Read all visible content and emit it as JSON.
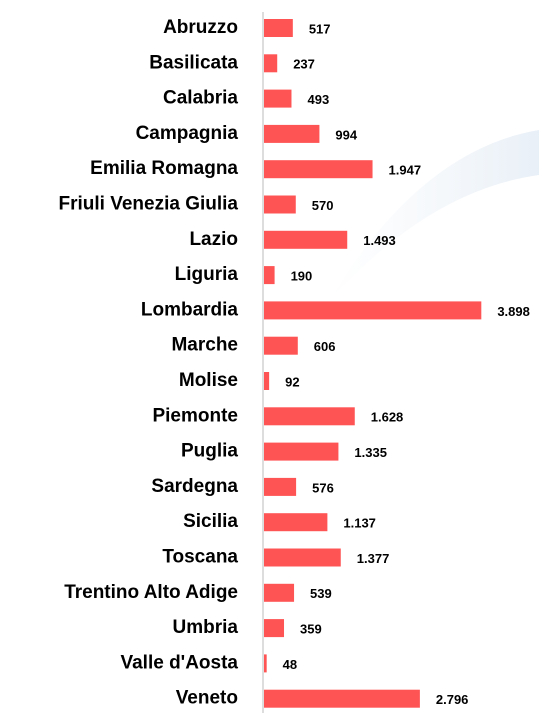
{
  "chart_data": {
    "type": "hbar",
    "categories": [
      "Abruzzo",
      "Basilicata",
      "Calabria",
      "Campagnia",
      "Emilia Romagna",
      "Friuli Venezia Giulia",
      "Lazio",
      "Liguria",
      "Lombardia",
      "Marche",
      "Molise",
      "Piemonte",
      "Puglia",
      "Sardegna",
      "Sicilia",
      "Toscana",
      "Trentino Alto Adige",
      "Umbria",
      "Valle d'Aosta",
      "Veneto"
    ],
    "values": [
      517,
      237,
      493,
      994,
      1947,
      570,
      1493,
      190,
      3898,
      606,
      92,
      1628,
      1335,
      576,
      1137,
      1377,
      539,
      359,
      48,
      2796
    ],
    "value_labels": [
      "517",
      "237",
      "493",
      "994",
      "1.947",
      "570",
      "1.493",
      "190",
      "3.898",
      "606",
      "92",
      "1.628",
      "1.335",
      "576",
      "1.137",
      "1.377",
      "539",
      "359",
      "48",
      "2.796"
    ],
    "color": "#ff5454",
    "xlim": [
      0,
      4000
    ]
  }
}
